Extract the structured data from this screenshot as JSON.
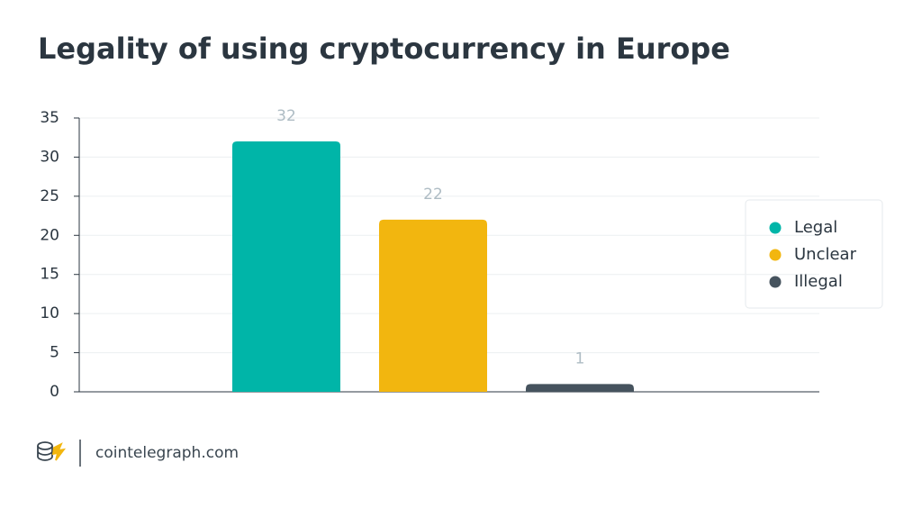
{
  "chart_data": {
    "type": "bar",
    "title": "Legality of using cryptocurrency in Europe",
    "categories": [
      null
    ],
    "series": [
      {
        "name": "Legal",
        "color": "#00b5a8",
        "values": [
          32
        ]
      },
      {
        "name": "Unclear",
        "color": "#f2b60f",
        "values": [
          22
        ]
      },
      {
        "name": "Illegal",
        "color": "#46535e",
        "values": [
          1
        ]
      }
    ],
    "ylim": [
      0,
      35
    ],
    "yticks": [
      0,
      5,
      10,
      15,
      20,
      25,
      30,
      35
    ],
    "grid": true,
    "legend": "right"
  },
  "footer": {
    "brand": "cointelegraph.com"
  }
}
